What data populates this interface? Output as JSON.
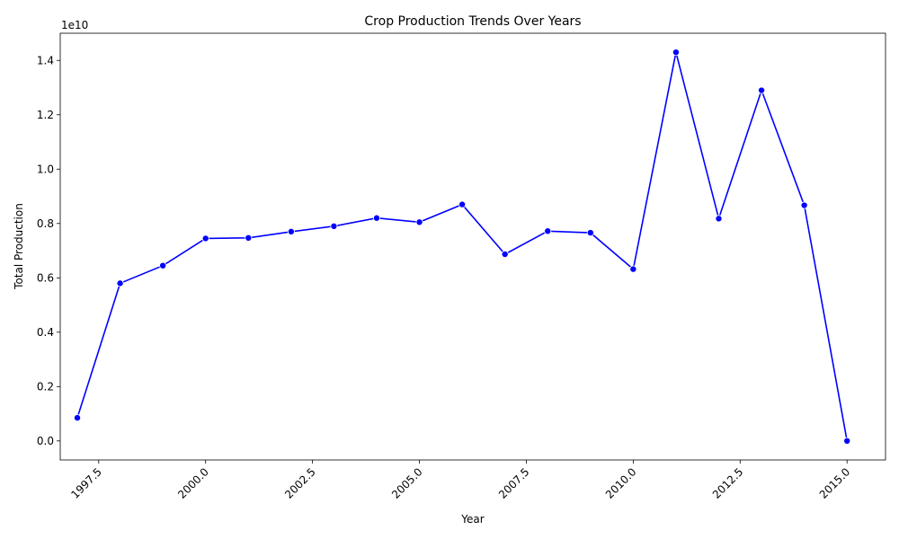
{
  "chart_data": {
    "type": "line",
    "title": "Crop Production Trends Over Years",
    "xlabel": "Year",
    "ylabel": "Total Production",
    "y_offset_label": "1e10",
    "xlim": [
      1996.6,
      2015.9
    ],
    "ylim": [
      -0.07,
      1.5
    ],
    "x_ticks": [
      1997.5,
      2000.0,
      2002.5,
      2005.0,
      2007.5,
      2010.0,
      2012.5,
      2015.0
    ],
    "x_tick_labels": [
      "1997.5",
      "2000.0",
      "2002.5",
      "2005.0",
      "2007.5",
      "2010.0",
      "2012.5",
      "2015.0"
    ],
    "y_ticks": [
      0.0,
      0.2,
      0.4,
      0.6,
      0.8,
      1.0,
      1.2,
      1.4
    ],
    "y_tick_labels": [
      "0.0",
      "0.2",
      "0.4",
      "0.6",
      "0.8",
      "1.0",
      "1.2",
      "1.4"
    ],
    "grid": false,
    "line_color": "#0000ff",
    "series": [
      {
        "x": [
          1997,
          1998,
          1999,
          2000,
          2001,
          2002,
          2003,
          2004,
          2005,
          2006,
          2007,
          2008,
          2009,
          2010,
          2011,
          2012,
          2013,
          2014,
          2015
        ],
        "values": [
          0.085,
          0.58,
          0.645,
          0.745,
          0.747,
          0.77,
          0.79,
          0.82,
          0.805,
          0.87,
          0.687,
          0.772,
          0.766,
          0.632,
          1.43,
          0.818,
          1.29,
          0.867,
          0.0
        ]
      }
    ]
  }
}
